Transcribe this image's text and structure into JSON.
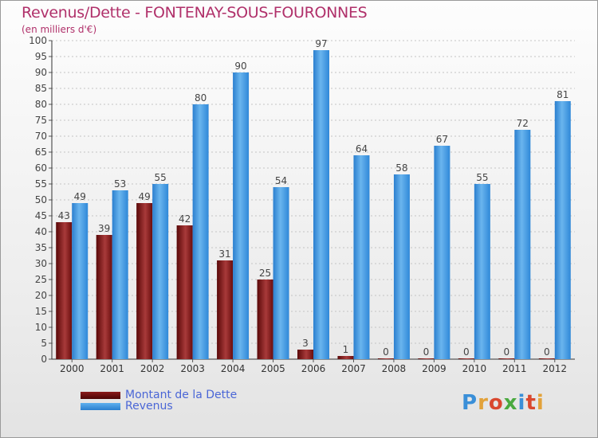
{
  "chart_data": {
    "type": "bar",
    "title": "Revenus/Dette - FONTENAY-SOUS-FOURONNES",
    "subtitle": "(en milliers d'€)",
    "categories": [
      "2000",
      "2001",
      "2002",
      "2003",
      "2004",
      "2005",
      "2006",
      "2007",
      "2008",
      "2009",
      "2010",
      "2011",
      "2012"
    ],
    "series": [
      {
        "name": "Montant de la Dette",
        "color": "#7a1212",
        "values": [
          43,
          39,
          49,
          42,
          31,
          25,
          3,
          1,
          0,
          0,
          0,
          0,
          0
        ]
      },
      {
        "name": "Revenus",
        "color": "#3a95e3",
        "values": [
          49,
          53,
          55,
          80,
          90,
          54,
          97,
          64,
          58,
          67,
          55,
          72,
          81
        ]
      }
    ],
    "ylim": [
      0,
      100
    ],
    "yticks": [
      0,
      5,
      10,
      15,
      20,
      25,
      30,
      35,
      40,
      45,
      50,
      55,
      60,
      65,
      70,
      75,
      80,
      85,
      90,
      95,
      100
    ],
    "grid": true,
    "legend": "bottom-left"
  },
  "brand": {
    "text": "Proxiti"
  }
}
